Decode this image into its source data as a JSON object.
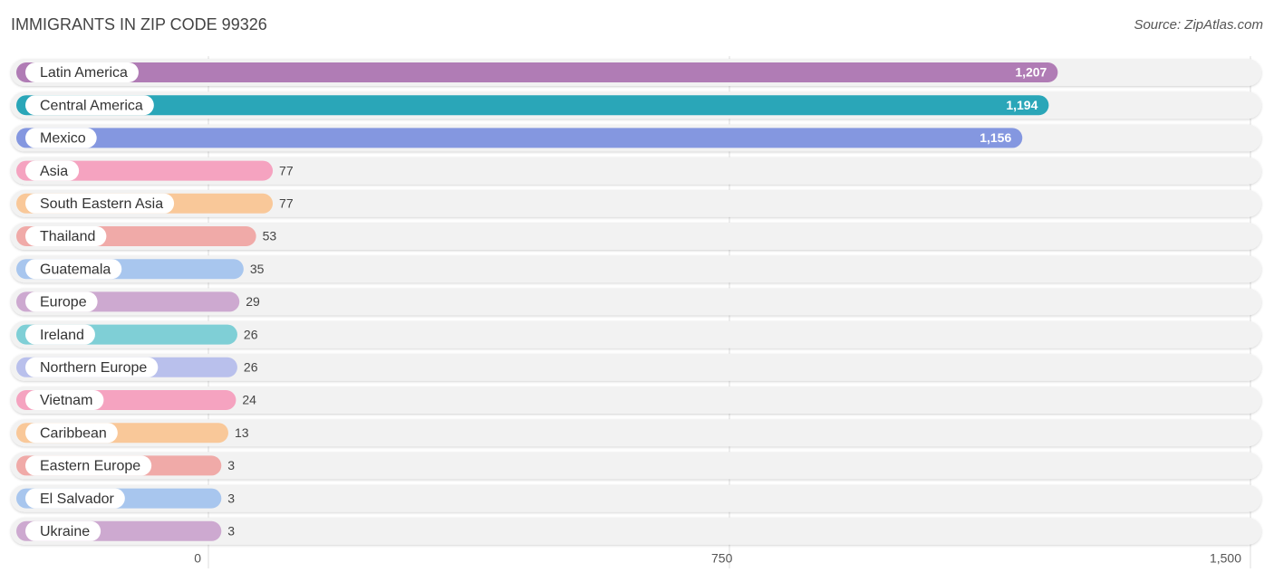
{
  "chart_data": {
    "type": "bar",
    "orientation": "horizontal",
    "title": "IMMIGRANTS IN ZIP CODE 99326",
    "source": "Source: ZipAtlas.com",
    "categories": [
      "Latin America",
      "Central America",
      "Mexico",
      "Asia",
      "South Eastern Asia",
      "Thailand",
      "Guatemala",
      "Europe",
      "Ireland",
      "Northern Europe",
      "Vietnam",
      "Caribbean",
      "Eastern Europe",
      "El Salvador",
      "Ukraine"
    ],
    "values": [
      1207,
      1194,
      1156,
      77,
      77,
      53,
      35,
      29,
      26,
      26,
      24,
      13,
      3,
      3,
      3
    ],
    "value_labels": [
      "1,207",
      "1,194",
      "1,156",
      "77",
      "77",
      "53",
      "35",
      "29",
      "26",
      "26",
      "24",
      "13",
      "3",
      "3",
      "3"
    ],
    "colors": [
      "#b07cb5",
      "#2aa6b8",
      "#8497e0",
      "#f5a3c0",
      "#f9c899",
      "#f0aaa8",
      "#a8c6ee",
      "#cda9d0",
      "#7fcfd6",
      "#b9c0ec",
      "#f5a3c0",
      "#f9c899",
      "#f0aaa8",
      "#a8c6ee",
      "#cda9d0"
    ],
    "xlim": [
      0,
      1500
    ],
    "xticks": [
      0,
      750,
      {
        "value": 1500,
        "label": "1,500"
      }
    ],
    "grid": true
  }
}
